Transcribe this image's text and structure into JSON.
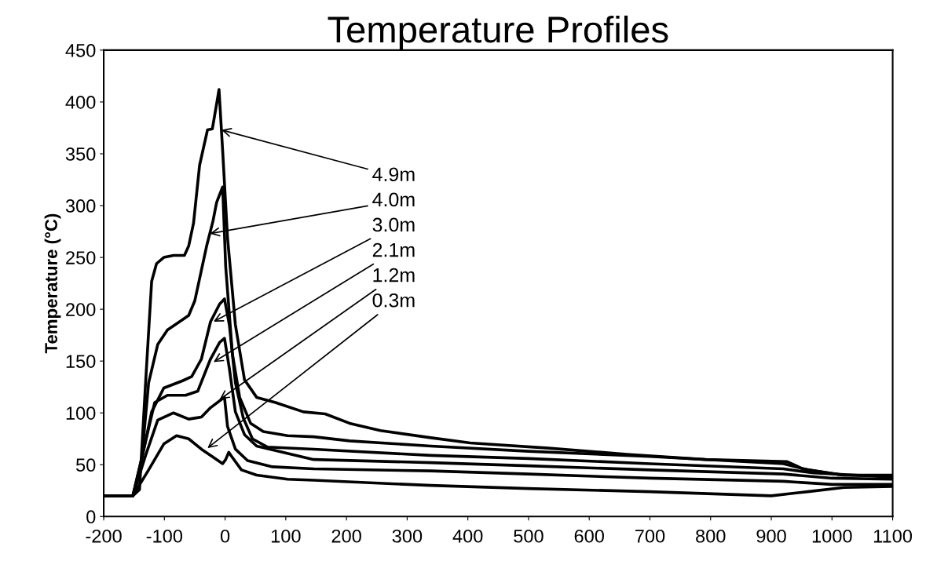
{
  "chart_data": {
    "type": "line",
    "title": "Temperature Profiles",
    "ylabel": "Temperature (°C)",
    "xlim": [
      -200,
      1100
    ],
    "xticks": [
      -200,
      -100,
      0,
      100,
      200,
      300,
      400,
      500,
      600,
      700,
      800,
      900,
      1000,
      1100
    ],
    "ylim": [
      0,
      450
    ],
    "yticks": [
      0,
      50,
      100,
      150,
      200,
      250,
      300,
      350,
      400,
      450
    ],
    "grid": false,
    "legend": false,
    "marker": "none",
    "line_style": "solid",
    "series": [
      {
        "color": "#000000",
        "x": [
          -200,
          -152,
          -141,
          -131,
          -121,
          -113,
          -101,
          -85,
          -67,
          -60,
          -52,
          -42,
          -29,
          -21,
          -14,
          -10,
          -4,
          4,
          17,
          32,
          52,
          83,
          129,
          165,
          205,
          256,
          339,
          404,
          533,
          662,
          791,
          926,
          952,
          1016,
          1100
        ],
        "values": [
          20,
          20,
          26,
          129,
          227,
          244,
          250,
          252,
          252,
          261,
          283,
          339,
          373,
          374,
          398,
          412,
          353,
          269,
          185,
          132,
          115,
          110,
          101,
          99,
          90,
          83,
          76,
          71,
          66,
          60,
          55,
          53,
          46,
          40,
          40
        ]
      },
      {
        "color": "#000000",
        "x": [
          -200,
          -152,
          -139,
          -126,
          -111,
          -95,
          -75,
          -60,
          -50,
          -40,
          -30,
          -20,
          -14,
          -4,
          1,
          12,
          24,
          42,
          63,
          103,
          146,
          205,
          339,
          500,
          700,
          920,
          960,
          1020,
          1100
        ],
        "values": [
          20,
          20,
          45,
          129,
          166,
          180,
          188,
          194,
          208,
          235,
          262,
          285,
          303,
          318,
          241,
          157,
          115,
          90,
          82,
          78,
          77,
          73,
          68,
          63,
          58,
          51,
          45,
          40,
          39
        ]
      },
      {
        "color": "#000000",
        "x": [
          -200,
          -152,
          -136,
          -121,
          -101,
          -70,
          -55,
          -39,
          -24,
          -9,
          -1,
          7,
          17,
          30,
          45,
          70,
          146,
          339,
          500,
          700,
          920,
          970,
          1100
        ],
        "values": [
          20,
          20,
          59,
          101,
          124,
          131,
          135,
          152,
          188,
          205,
          210,
          185,
          129,
          95,
          75,
          67,
          65,
          59,
          56,
          51,
          46,
          42,
          38
        ]
      },
      {
        "color": "#000000",
        "x": [
          -200,
          -152,
          -134,
          -116,
          -95,
          -65,
          -45,
          -24,
          -9,
          -1,
          7,
          17,
          32,
          52,
          146,
          339,
          500,
          700,
          920,
          1000,
          1100
        ],
        "values": [
          20,
          20,
          65,
          110,
          117,
          117,
          121,
          152,
          168,
          172,
          143,
          101,
          79,
          68,
          55,
          52,
          49,
          45,
          41,
          37,
          36
        ]
      },
      {
        "color": "#000000",
        "x": [
          -200,
          -152,
          -131,
          -111,
          -85,
          -60,
          -39,
          -24,
          -6,
          -1,
          4,
          17,
          37,
          78,
          146,
          339,
          500,
          700,
          920,
          1000,
          1100
        ],
        "values": [
          20,
          20,
          59,
          93,
          100,
          94,
          96,
          105,
          113,
          115,
          87,
          65,
          54,
          48,
          46,
          44,
          41,
          37,
          34,
          31,
          31
        ]
      },
      {
        "color": "#000000",
        "x": [
          -200,
          -152,
          -126,
          -101,
          -80,
          -60,
          -39,
          -19,
          -4,
          1,
          6,
          12,
          27,
          52,
          103,
          146,
          339,
          500,
          700,
          900,
          960,
          1020,
          1100
        ],
        "values": [
          20,
          20,
          45,
          70,
          78,
          75,
          65,
          57,
          51,
          55,
          62,
          57,
          45,
          40,
          36,
          35,
          30,
          27,
          24,
          20,
          24,
          28,
          29
        ]
      }
    ],
    "annotations": [
      {
        "text": "4.9m",
        "x": -6,
        "y": 373
      },
      {
        "text": "4.0m",
        "x": -25,
        "y": 273
      },
      {
        "text": "3.0m",
        "x": -19,
        "y": 188
      },
      {
        "text": "2.1m",
        "x": -19,
        "y": 149
      },
      {
        "text": "1.2m",
        "x": -9,
        "y": 113
      },
      {
        "text": "0.3m",
        "x": -29,
        "y": 66
      }
    ]
  }
}
